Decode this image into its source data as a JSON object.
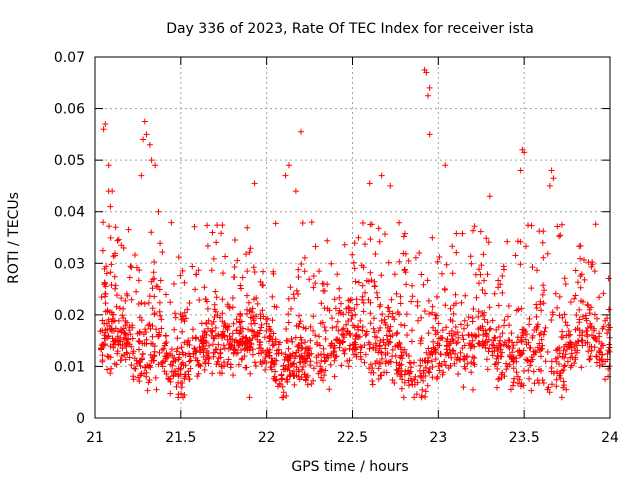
{
  "chart_data": {
    "type": "scatter",
    "title": "Day 336 of 2023, Rate Of TEC Index for receiver ista",
    "xlabel": "GPS time / hours",
    "ylabel": "ROTI / TECUs",
    "xlim": [
      21,
      24
    ],
    "ylim": [
      0,
      0.07
    ],
    "xticks": [
      21,
      21.5,
      22,
      22.5,
      23,
      23.5,
      24
    ],
    "xtick_labels": [
      "21",
      "21.5",
      "22",
      "22.5",
      "23",
      "23.5",
      "24"
    ],
    "yticks": [
      0,
      0.01,
      0.02,
      0.03,
      0.04,
      0.05,
      0.06,
      0.07
    ],
    "ytick_labels": [
      "0",
      "0.01",
      "0.02",
      "0.03",
      "0.04",
      "0.05",
      "0.06",
      "0.07"
    ],
    "grid": true,
    "marker": "+",
    "color": "#ff0000",
    "series": [
      {
        "name": "ROTI",
        "description": "Dense scatter of '+' markers; bulk of points between 0.005 and 0.02 TECU/s over the full interval, with episodic excursions.",
        "notable_points": [
          {
            "x": 21.05,
            "y": 0.056
          },
          {
            "x": 21.06,
            "y": 0.057
          },
          {
            "x": 21.08,
            "y": 0.049
          },
          {
            "x": 21.08,
            "y": 0.044
          },
          {
            "x": 21.1,
            "y": 0.044
          },
          {
            "x": 21.09,
            "y": 0.041
          },
          {
            "x": 21.12,
            "y": 0.037
          },
          {
            "x": 21.28,
            "y": 0.054
          },
          {
            "x": 21.29,
            "y": 0.0575
          },
          {
            "x": 21.3,
            "y": 0.055
          },
          {
            "x": 21.32,
            "y": 0.053
          },
          {
            "x": 21.33,
            "y": 0.05
          },
          {
            "x": 21.35,
            "y": 0.049
          },
          {
            "x": 21.27,
            "y": 0.047
          },
          {
            "x": 21.37,
            "y": 0.04
          },
          {
            "x": 21.93,
            "y": 0.0455
          },
          {
            "x": 22.11,
            "y": 0.047
          },
          {
            "x": 22.13,
            "y": 0.049
          },
          {
            "x": 22.2,
            "y": 0.0555
          },
          {
            "x": 22.17,
            "y": 0.044
          },
          {
            "x": 22.6,
            "y": 0.0455
          },
          {
            "x": 22.67,
            "y": 0.047
          },
          {
            "x": 22.72,
            "y": 0.045
          },
          {
            "x": 22.92,
            "y": 0.0675
          },
          {
            "x": 22.93,
            "y": 0.067
          },
          {
            "x": 22.95,
            "y": 0.064
          },
          {
            "x": 22.94,
            "y": 0.0625
          },
          {
            "x": 22.95,
            "y": 0.055
          },
          {
            "x": 23.04,
            "y": 0.049
          },
          {
            "x": 23.3,
            "y": 0.043
          },
          {
            "x": 23.49,
            "y": 0.052
          },
          {
            "x": 23.5,
            "y": 0.0515
          },
          {
            "x": 23.48,
            "y": 0.048
          },
          {
            "x": 23.66,
            "y": 0.048
          },
          {
            "x": 23.67,
            "y": 0.0465
          },
          {
            "x": 23.65,
            "y": 0.045
          },
          {
            "x": 23.57,
            "y": 0.022
          },
          {
            "x": 23.72,
            "y": 0.004
          },
          {
            "x": 21.9,
            "y": 0.004
          },
          {
            "x": 22.1,
            "y": 0.005
          }
        ],
        "bulk_band": {
          "y_min": 0.004,
          "y_max": 0.035,
          "dense_y_min": 0.007,
          "dense_y_max": 0.018
        }
      }
    ]
  }
}
